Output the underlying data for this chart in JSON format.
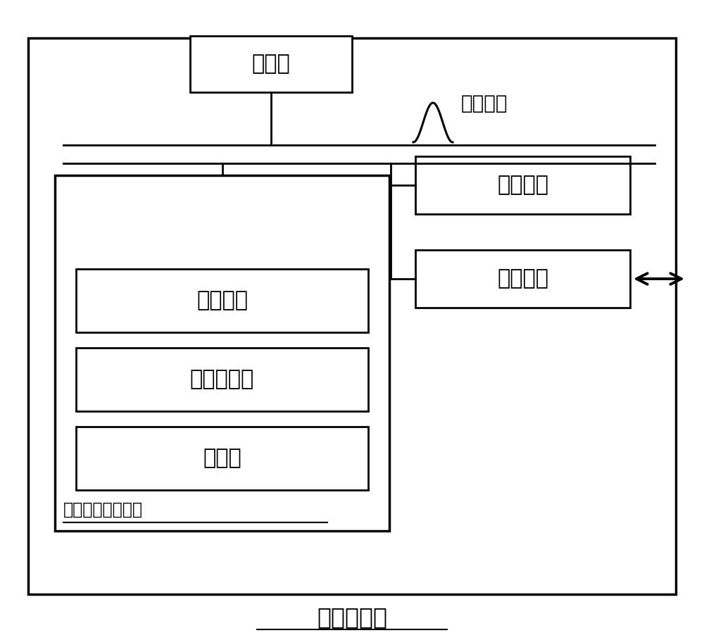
{
  "title": "计算机设备",
  "processor_label": "处理器",
  "bus_label": "系统总线",
  "memory_label": "内存储器",
  "network_label": "网络接口",
  "nonvolatile_label": "非易失性存储介质",
  "os_label": "操作系统",
  "program_label": "计算机程序",
  "database_label": "数据库",
  "bg_color": "#ffffff",
  "font_color": "#000000",
  "font_size_main": 22,
  "font_size_title": 24,
  "font_size_bus": 20,
  "font_size_nvs": 17
}
